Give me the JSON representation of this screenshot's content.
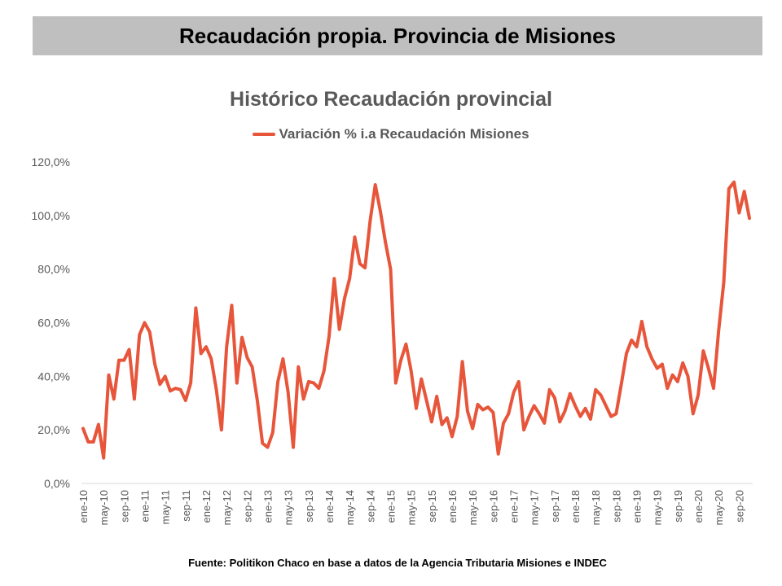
{
  "header": {
    "title": "Recaudación propia. Provincia de Misiones"
  },
  "footer": {
    "source": "Fuente: Politikon Chaco en base a datos de la Agencia Tributaria Misiones e INDEC"
  },
  "colors": {
    "series": "#e7553a",
    "banner": "#bfbfbf",
    "text": "#595959"
  },
  "chart_data": {
    "type": "line",
    "title": "Histórico Recaudación provincial",
    "xlabel": "",
    "ylabel": "",
    "ylim": [
      0,
      120
    ],
    "yticks": [
      "0,0%",
      "20,0%",
      "40,0%",
      "60,0%",
      "80,0%",
      "100,0%",
      "120,0%"
    ],
    "grid": false,
    "legend_position": "top",
    "x_tick_labels": [
      "ene-10",
      "may-10",
      "sep-10",
      "ene-11",
      "may-11",
      "sep-11",
      "ene-12",
      "may-12",
      "sep-12",
      "ene-13",
      "may-13",
      "sep-13",
      "ene-14",
      "may-14",
      "sep-14",
      "ene-15",
      "may-15",
      "sep-15",
      "ene-16",
      "may-16",
      "sep-16",
      "ene-17",
      "may-17",
      "sep-17",
      "ene-18",
      "may-18",
      "sep-18",
      "ene-19",
      "may-19",
      "sep-19",
      "ene-20",
      "may-20",
      "sep-20"
    ],
    "series": [
      {
        "name": "Variación % i.a Recaudación Misiones",
        "values": [
          20.5,
          15.5,
          15.5,
          22,
          9.5,
          40.5,
          31.5,
          46,
          46,
          50,
          31.5,
          55.5,
          60,
          56.5,
          44.5,
          37,
          40,
          34.5,
          35.5,
          35,
          31,
          37.5,
          65.5,
          48.5,
          51,
          46.5,
          35,
          20,
          51,
          66.5,
          37.5,
          54.5,
          47,
          43.5,
          31,
          15,
          13.5,
          19,
          38,
          46.5,
          34,
          13.5,
          43.5,
          31.5,
          38,
          37.5,
          35.5,
          42,
          55,
          76.5,
          57.5,
          69,
          76.5,
          92,
          82,
          80.5,
          98,
          111.5,
          101.5,
          90,
          80,
          37.5,
          46,
          52,
          42,
          28,
          39,
          31,
          23,
          32.5,
          22,
          24.5,
          17.5,
          25,
          45.5,
          27,
          20.5,
          29.5,
          27.5,
          28.5,
          26.5,
          11,
          22.5,
          26,
          34,
          38,
          20,
          25,
          29,
          26,
          22.5,
          35,
          32,
          23,
          27,
          33.5,
          29,
          25,
          28,
          24,
          35,
          33,
          29,
          25,
          26,
          37,
          48.5,
          53.5,
          51,
          60.5,
          51,
          46.5,
          43,
          44.5,
          35.5,
          40.5,
          38,
          45,
          40,
          26,
          33,
          49.5,
          43,
          35.5,
          57,
          75,
          110,
          112.5,
          101,
          109,
          99
        ]
      }
    ]
  }
}
